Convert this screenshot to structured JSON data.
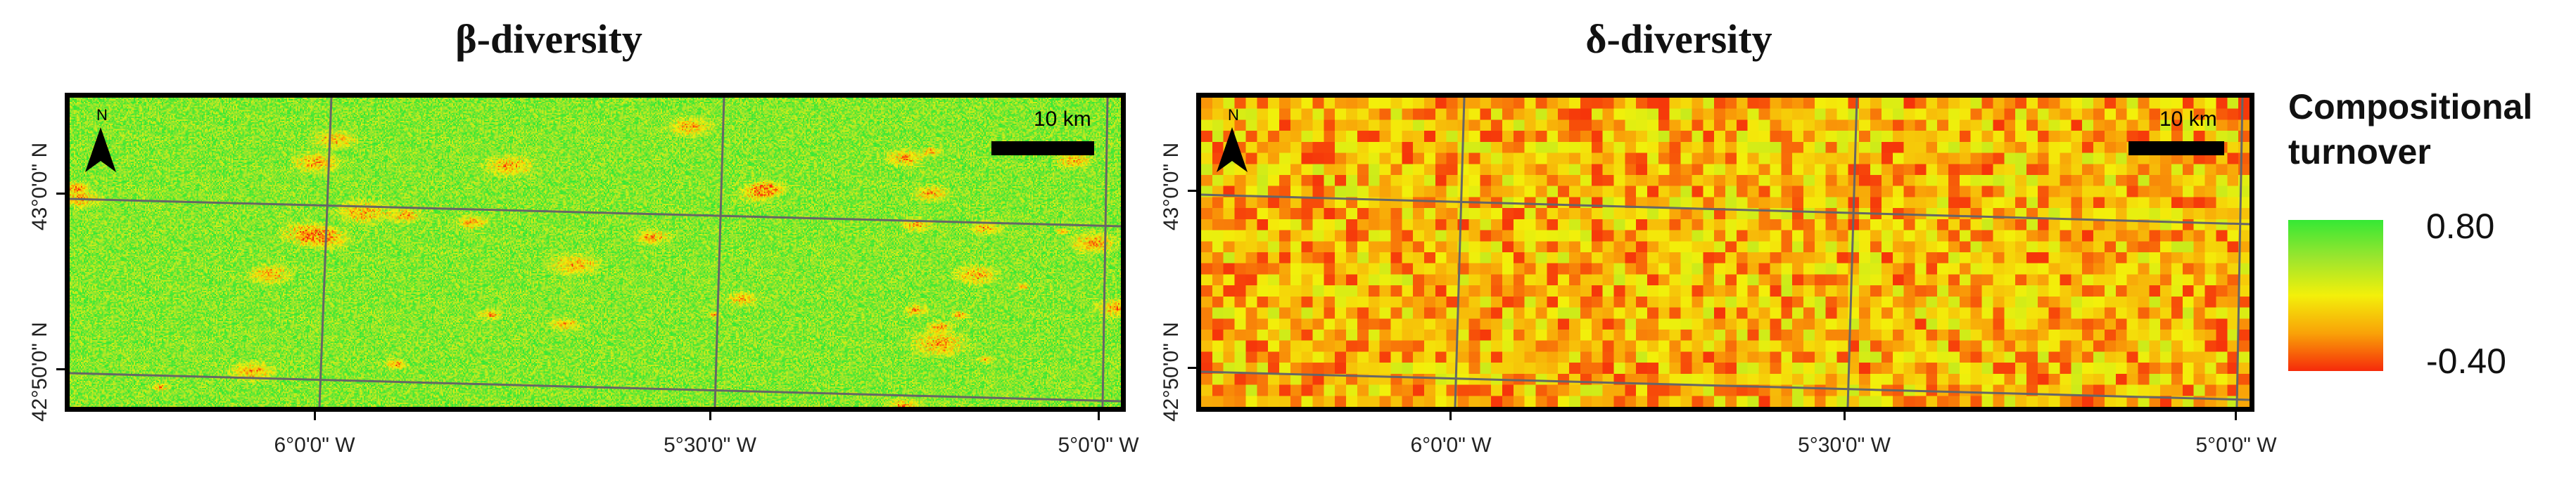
{
  "panels": [
    {
      "id": "beta",
      "title": "β-diversity",
      "north_label": "N",
      "scale_label": "10 km",
      "y_ticks": [
        "43°0'0\" N",
        "42°50'0\" N"
      ],
      "x_ticks": [
        "6°0'0\" W",
        "5°30'0\" W",
        "5°0'0\" W"
      ]
    },
    {
      "id": "delta",
      "title": "δ-diversity",
      "north_label": "N",
      "scale_label": "10 km",
      "y_ticks": [
        "43°0'0\" N",
        "42°50'0\" N"
      ],
      "x_ticks": [
        "6°0'0\" W",
        "5°30'0\" W",
        "5°0'0\" W"
      ]
    }
  ],
  "legend": {
    "title_line1": "Compositional",
    "title_line2": "turnover",
    "max_label": "0.80",
    "min_label": "-0.40",
    "colors": [
      "#35e835",
      "#9be52e",
      "#f3f00a",
      "#f9a208",
      "#f62a0a"
    ]
  }
}
